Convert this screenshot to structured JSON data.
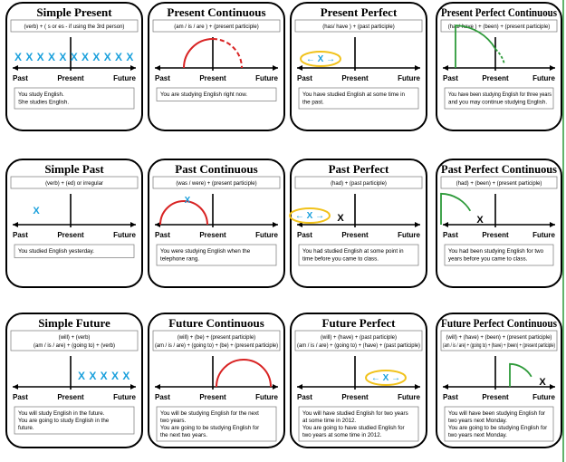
{
  "timeline": [
    "Past",
    "Present",
    "Future"
  ],
  "cards": [
    {
      "title": "Simple Present",
      "formula": [
        "(verb) + ( s or es - if using the 3rd person)"
      ],
      "marks": [
        "X X X X X X X X X X X"
      ],
      "example": [
        "You study English.",
        "She studies English."
      ]
    },
    {
      "title": "Present Continuous",
      "formula": [
        "(am / is / are ) + (present participle)"
      ],
      "example": [
        "You are studying English right now."
      ]
    },
    {
      "title": "Present Perfect",
      "formula": [
        "(has/ have ) + (past participle)"
      ],
      "marks": [
        "← X →"
      ],
      "example": [
        "You have studied English at some time in",
        "the past."
      ]
    },
    {
      "title": "Present Perfect Continuous",
      "formula": [
        "(has/ have ) + (been) + (present participle)"
      ],
      "example": [
        "You have been studying English for three years",
        "and you may continue studying English."
      ]
    },
    {
      "title": "Simple Past",
      "formula": [
        "(verb) + (ed)  or  irregular"
      ],
      "marks": [
        "X"
      ],
      "example": [
        "You studied English yesterday."
      ]
    },
    {
      "title": "Past Continuous",
      "formula": [
        "(was / were) + (present participle)"
      ],
      "marks": [
        "X"
      ],
      "example": [
        "You were studying English when the",
        "telephone rang."
      ]
    },
    {
      "title": "Past Perfect",
      "formula": [
        "(had) + (past participle)"
      ],
      "marks": [
        "← X →",
        "X"
      ],
      "example": [
        "You had studied English at some point in",
        "time before you came to class."
      ]
    },
    {
      "title": "Past Perfect Continuous",
      "formula": [
        "(had) + (been) + (present participle)"
      ],
      "marks": [
        "X"
      ],
      "example": [
        "You had been studying English for two",
        "years before you came to class."
      ]
    },
    {
      "title": "Simple Future",
      "formula": [
        "(will) + (verb)",
        "(am / is / are) + (going to) + (verb)"
      ],
      "marks": [
        "X X X X X"
      ],
      "example": [
        "You will study English in the future.",
        "You are going to study English in the",
        "future."
      ]
    },
    {
      "title": "Future Continuous",
      "formula": [
        "(will) + (be) + (present participle)",
        "(am / is / are) + (going to) + (be) + (present participle)"
      ],
      "example": [
        "You will be studying English for the next",
        "two years.",
        "You are going to be studying English for",
        "the next two years."
      ]
    },
    {
      "title": "Future Perfect",
      "formula": [
        "(will) + (have) + (past participle)",
        "(am / is / are) + (going to) + (have) + (past participle)"
      ],
      "marks": [
        "← X →"
      ],
      "example": [
        "You will have studied English for two years",
        "at some time in 2012.",
        "You are going to have studied English for",
        "two years at some time in 2012."
      ]
    },
    {
      "title": "Future Perfect Continuous",
      "formula": [
        "(will) + (have) + (been) + (present participle)",
        "(am / is / are) + (going to) + (have) + (been) + (present participle)"
      ],
      "marks": [
        "X"
      ],
      "example": [
        "You will have been studying English for",
        "two years next Monday.",
        "You are going to be studying English for",
        "two years next Monday."
      ]
    }
  ]
}
